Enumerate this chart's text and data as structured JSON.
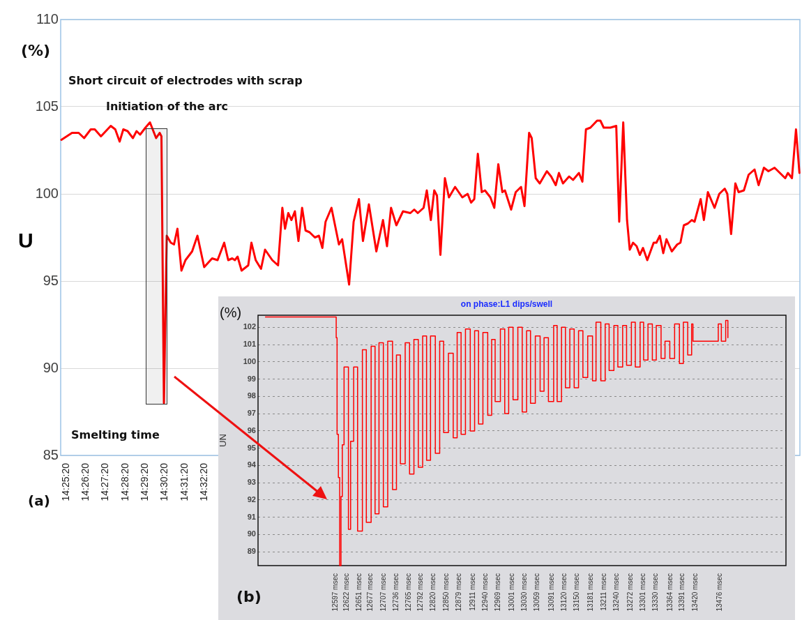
{
  "chart_data": [
    {
      "type": "line",
      "ylabel": "U",
      "annotations": [
        "(%)",
        "Short circuit of electrodes with scrap",
        "Initiation of the arc",
        "Smelting time",
        "(a)"
      ],
      "color": "#ff0000",
      "marker": "none",
      "grid": "y",
      "xlim": [
        14.4175,
        15.0418
      ],
      "ylim": [
        85,
        110
      ],
      "yticks": [
        85,
        90,
        95,
        100,
        105,
        110
      ],
      "xticks": [
        {
          "value": 14.42222,
          "label": "14:25:20"
        },
        {
          "value": 14.43889,
          "label": "14:26:20"
        },
        {
          "value": 14.45556,
          "label": "14:27:20"
        },
        {
          "value": 14.47222,
          "label": "14:28:20"
        },
        {
          "value": 14.48889,
          "label": "14:29:20"
        },
        {
          "value": 14.50556,
          "label": "14:30:20"
        },
        {
          "value": 14.52222,
          "label": "14:31:20"
        },
        {
          "value": 14.53889,
          "label": "14:32:20"
        }
      ],
      "x": [
        14.4181,
        14.4271,
        14.4327,
        14.4373,
        14.4429,
        14.4463,
        14.4515,
        14.4598,
        14.4636,
        14.4673,
        14.4704,
        14.474,
        14.4785,
        14.4816,
        14.4846,
        14.4891,
        14.4929,
        14.4981,
        14.5011,
        14.5026,
        14.5047,
        14.5071,
        14.5105,
        14.5132,
        14.5161,
        14.5195,
        14.5229,
        14.5285,
        14.533,
        14.5387,
        14.5454,
        14.55,
        14.5556,
        14.559,
        14.5624,
        14.5646,
        14.5669,
        14.5703,
        14.5759,
        14.5786,
        14.5822,
        14.5867,
        14.5901,
        14.5962,
        14.6011,
        14.6047,
        14.607,
        14.6097,
        14.6124,
        14.6153,
        14.6183,
        14.6214,
        14.6243,
        14.6277,
        14.6322,
        14.6356,
        14.6385,
        14.6412,
        14.6462,
        14.6525,
        14.6552,
        14.6611,
        14.6649,
        14.6694,
        14.6728,
        14.6778,
        14.6841,
        14.6897,
        14.6931,
        14.6965,
        14.701,
        14.7066,
        14.7128,
        14.7161,
        14.7191,
        14.724,
        14.7267,
        14.7301,
        14.733,
        14.7353,
        14.7382,
        14.742,
        14.7454,
        14.7506,
        14.7567,
        14.7612,
        14.7641,
        14.7668,
        14.7698,
        14.7731,
        14.7758,
        14.7804,
        14.7837,
        14.7871,
        14.7905,
        14.7927,
        14.7979,
        14.8018,
        14.8063,
        14.8092,
        14.8131,
        14.8153,
        14.8187,
        14.8221,
        14.8281,
        14.8317,
        14.8356,
        14.8383,
        14.8417,
        14.8469,
        14.8502,
        14.8552,
        14.8581,
        14.8611,
        14.8649,
        14.8705,
        14.8733,
        14.8761,
        14.8818,
        14.8867,
        14.8892,
        14.8926,
        14.8958,
        14.8981,
        14.9009,
        14.9039,
        14.9066,
        14.9093,
        14.9129,
        14.9183,
        14.9206,
        14.9235,
        14.9264,
        14.9291,
        14.9336,
        14.9382,
        14.9409,
        14.9438,
        14.9472,
        14.9505,
        14.9528,
        14.958,
        14.9607,
        14.9641,
        14.9697,
        14.9737,
        14.9783,
        14.9805,
        14.9837,
        14.9873,
        14.99,
        14.9945,
        14.9985,
        15.0035,
        15.0069,
        15.0114,
        15.0152,
        15.0204,
        15.0249,
        15.0294,
        15.0317,
        15.0351,
        15.0385,
        15.0414
      ],
      "values": [
        103.1,
        103.5,
        103.5,
        103.2,
        103.7,
        103.7,
        103.3,
        103.9,
        103.7,
        103.0,
        103.7,
        103.6,
        103.2,
        103.6,
        103.4,
        103.8,
        104.1,
        103.2,
        103.5,
        103.3,
        88.0,
        97.6,
        97.2,
        97.1,
        98.0,
        95.6,
        96.2,
        96.7,
        97.6,
        95.8,
        96.3,
        96.2,
        97.2,
        96.2,
        96.3,
        96.2,
        96.4,
        95.6,
        95.9,
        97.2,
        96.2,
        95.7,
        96.8,
        96.2,
        95.9,
        99.2,
        98.0,
        98.9,
        98.5,
        99.0,
        97.3,
        99.2,
        97.9,
        97.8,
        97.5,
        97.6,
        96.9,
        98.4,
        99.2,
        97.1,
        97.4,
        94.8,
        98.4,
        99.7,
        97.3,
        99.4,
        96.7,
        98.5,
        97.0,
        99.2,
        98.2,
        99.0,
        98.9,
        99.1,
        98.9,
        99.2,
        100.2,
        98.5,
        100.2,
        99.9,
        96.5,
        100.9,
        99.8,
        100.4,
        99.8,
        100.0,
        99.5,
        99.7,
        102.3,
        100.1,
        100.2,
        99.8,
        99.2,
        101.7,
        100.1,
        100.2,
        99.1,
        100.1,
        100.4,
        99.3,
        103.5,
        103.2,
        100.9,
        100.6,
        101.3,
        101.0,
        100.5,
        101.2,
        100.6,
        101.0,
        100.8,
        101.2,
        100.7,
        103.7,
        103.8,
        104.2,
        104.2,
        103.8,
        103.8,
        103.9,
        98.4,
        104.1,
        98.5,
        96.8,
        97.2,
        97.0,
        96.5,
        96.9,
        96.2,
        97.2,
        97.2,
        97.6,
        96.6,
        97.4,
        96.7,
        97.1,
        97.2,
        98.2,
        98.3,
        98.5,
        98.4,
        99.7,
        98.5,
        100.1,
        99.2,
        100.0,
        100.3,
        100.0,
        97.7,
        100.6,
        100.1,
        100.2,
        101.1,
        101.4,
        100.5,
        101.5,
        101.3,
        101.5,
        101.2,
        100.9,
        101.2,
        100.9,
        103.7,
        101.2
      ]
    },
    {
      "type": "step",
      "title": "on phase:L1 dips/swell",
      "ylabel": "UN",
      "annotations": [
        "(%)",
        "(b)"
      ],
      "color": "#ff0000",
      "marker": "none",
      "grid": "y",
      "xlim": [
        12419,
        13628
      ],
      "ylim": [
        88.2,
        102.7
      ],
      "yticks": [
        89,
        90,
        91,
        92,
        93,
        94,
        95,
        96,
        97,
        98,
        99,
        100,
        101,
        102
      ],
      "xticks": [
        {
          "value": 12597,
          "label": "12597 msec"
        },
        {
          "value": 12622,
          "label": "12622 msec"
        },
        {
          "value": 12651,
          "label": "12651 msec"
        },
        {
          "value": 12677,
          "label": "12677 msec"
        },
        {
          "value": 12707,
          "label": "12707 msec"
        },
        {
          "value": 12736,
          "label": "12736 msec"
        },
        {
          "value": 12765,
          "label": "12765 msec"
        },
        {
          "value": 12792,
          "label": "12792 msec"
        },
        {
          "value": 12820,
          "label": "12820 msec"
        },
        {
          "value": 12850,
          "label": "12850 msec"
        },
        {
          "value": 12879,
          "label": "12879 msec"
        },
        {
          "value": 12911,
          "label": "12911 msec"
        },
        {
          "value": 12940,
          "label": "12940 msec"
        },
        {
          "value": 12969,
          "label": "12969 msec"
        },
        {
          "value": 13001,
          "label": "13001 msec"
        },
        {
          "value": 13030,
          "label": "13030 msec"
        },
        {
          "value": 13059,
          "label": "13059 msec"
        },
        {
          "value": 13091,
          "label": "13091 msec"
        },
        {
          "value": 13120,
          "label": "13120 msec"
        },
        {
          "value": 13150,
          "label": "13150 msec"
        },
        {
          "value": 13181,
          "label": "13181 msec"
        },
        {
          "value": 13211,
          "label": "13211 msec"
        },
        {
          "value": 13240,
          "label": "13240 msec"
        },
        {
          "value": 13272,
          "label": "13272 msec"
        },
        {
          "value": 13301,
          "label": "13301 msec"
        },
        {
          "value": 13330,
          "label": "13330 msec"
        },
        {
          "value": 13364,
          "label": "13364 msec"
        },
        {
          "value": 13391,
          "label": "13391 msec"
        },
        {
          "value": 13420,
          "label": "13420 msec"
        },
        {
          "value": 13476,
          "label": "13476 msec"
        }
      ],
      "x": [
        12436,
        12596,
        12598,
        12600,
        12603,
        12606,
        12609,
        12612,
        12616,
        12626,
        12631,
        12638,
        12647,
        12658,
        12667,
        12678,
        12687,
        12696,
        12706,
        12716,
        12727,
        12736,
        12745,
        12756,
        12766,
        12776,
        12786,
        12796,
        12805,
        12814,
        12825,
        12835,
        12844,
        12855,
        12866,
        12875,
        12884,
        12894,
        12905,
        12915,
        12924,
        12934,
        12945,
        12954,
        12962,
        12974,
        12984,
        12993,
        13003,
        13014,
        13024,
        13034,
        13043,
        13054,
        13065,
        13074,
        13084,
        13096,
        13104,
        13114,
        13123,
        13133,
        13143,
        13153,
        13163,
        13174,
        13185,
        13193,
        13204,
        13214,
        13223,
        13234,
        13243,
        13254,
        13263,
        13274,
        13283,
        13294,
        13302,
        13312,
        13322,
        13331,
        13342,
        13351,
        13362,
        13373,
        13384,
        13393,
        13403,
        13412,
        13415,
        13471,
        13473,
        13480,
        13488,
        13490,
        13495
      ],
      "values": [
        102.6,
        102.6,
        101.4,
        95.8,
        93.3,
        88.2,
        92.2,
        95.2,
        99.7,
        90.3,
        95.4,
        99.7,
        90.2,
        100.7,
        90.7,
        100.9,
        91.2,
        101.1,
        91.6,
        101.2,
        92.6,
        100.4,
        94.1,
        101.1,
        93.5,
        101.3,
        93.9,
        101.5,
        94.3,
        101.5,
        94.7,
        101.2,
        95.9,
        100.5,
        95.6,
        101.7,
        95.8,
        101.9,
        96.0,
        101.8,
        96.4,
        101.7,
        96.9,
        101.3,
        97.7,
        101.9,
        97.0,
        102.0,
        97.8,
        102.0,
        97.1,
        101.8,
        97.6,
        101.5,
        98.3,
        101.4,
        97.7,
        102.1,
        97.7,
        102.0,
        98.5,
        101.9,
        98.5,
        101.8,
        99.1,
        101.5,
        98.9,
        102.3,
        98.9,
        102.2,
        99.5,
        102.1,
        99.7,
        102.1,
        99.8,
        102.3,
        99.7,
        102.3,
        100.1,
        102.2,
        100.1,
        102.1,
        100.2,
        101.2,
        100.2,
        102.2,
        99.9,
        102.3,
        100.4,
        102.2,
        101.2,
        101.2,
        102.2,
        101.2,
        101.2,
        102.4,
        101.4
      ]
    }
  ]
}
